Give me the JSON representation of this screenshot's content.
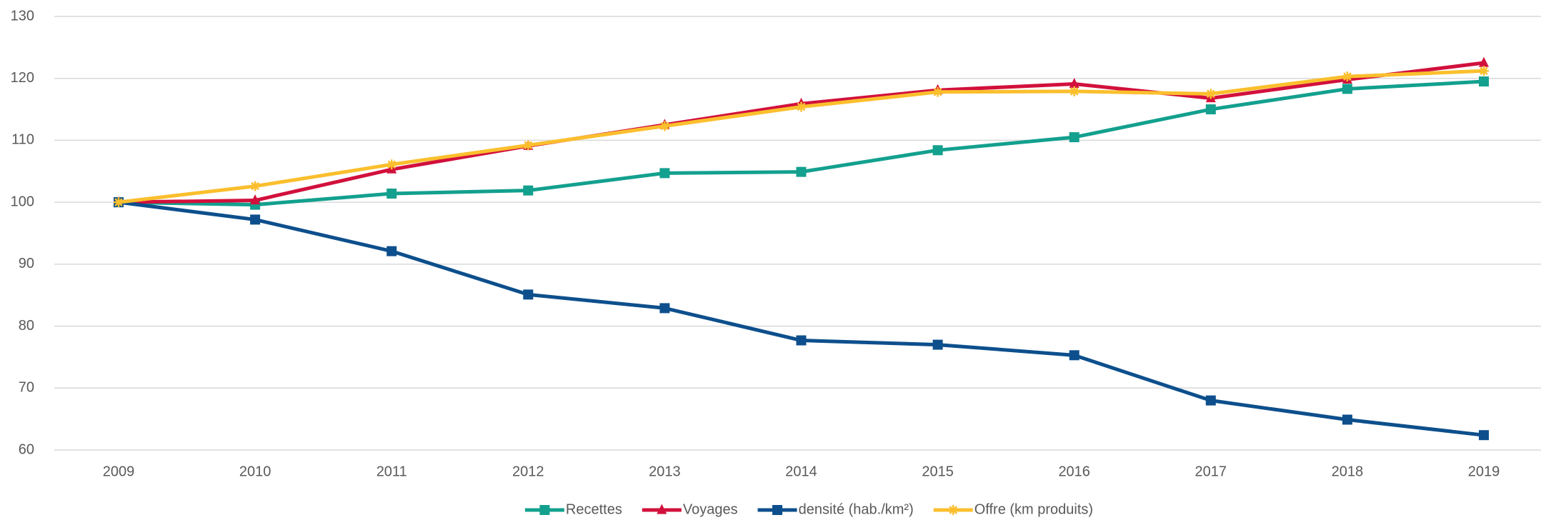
{
  "chart_data": {
    "type": "line",
    "categories": [
      "2009",
      "2010",
      "2011",
      "2012",
      "2013",
      "2014",
      "2015",
      "2016",
      "2017",
      "2018",
      "2019"
    ],
    "series": [
      {
        "name": "Recettes",
        "color": "#13a08e",
        "marker": "square",
        "values": [
          100,
          99.6,
          101.4,
          101.9,
          104.7,
          104.9,
          108.4,
          110.5,
          115,
          118.3,
          119.5
        ]
      },
      {
        "name": "Voyages",
        "color": "#d2103c",
        "marker": "triangle",
        "values": [
          100,
          100.3,
          105.3,
          109.1,
          112.5,
          115.9,
          118.1,
          119.1,
          116.8,
          119.8,
          122.5
        ]
      },
      {
        "name": "densité (hab./km²)",
        "color": "#0d4f8c",
        "marker": "square",
        "values": [
          100,
          97.2,
          92.1,
          85.1,
          82.9,
          77.7,
          77,
          75.3,
          68,
          64.9,
          62.4
        ]
      },
      {
        "name": "Offre (km produits)",
        "color": "#fbbf2d",
        "marker": "star",
        "values": [
          100,
          102.6,
          106.1,
          109.2,
          112.3,
          115.4,
          117.8,
          117.9,
          117.5,
          120.3,
          121.2
        ]
      }
    ],
    "ylim": [
      60,
      130
    ],
    "yticks": [
      60,
      70,
      80,
      90,
      100,
      110,
      120,
      130
    ],
    "grid": true,
    "legend": "bottom"
  }
}
